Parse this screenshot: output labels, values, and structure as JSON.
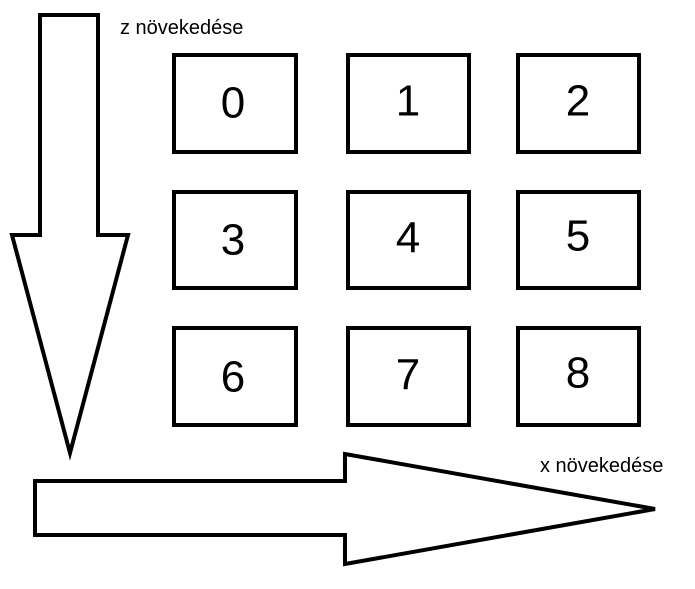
{
  "labels": {
    "z_axis": "z növekedése",
    "x_axis": "x növekedése"
  },
  "grid": {
    "cells": [
      "0",
      "1",
      "2",
      "3",
      "4",
      "5",
      "6",
      "7",
      "8"
    ]
  },
  "colors": {
    "stroke": "#000000",
    "fill": "#ffffff"
  }
}
